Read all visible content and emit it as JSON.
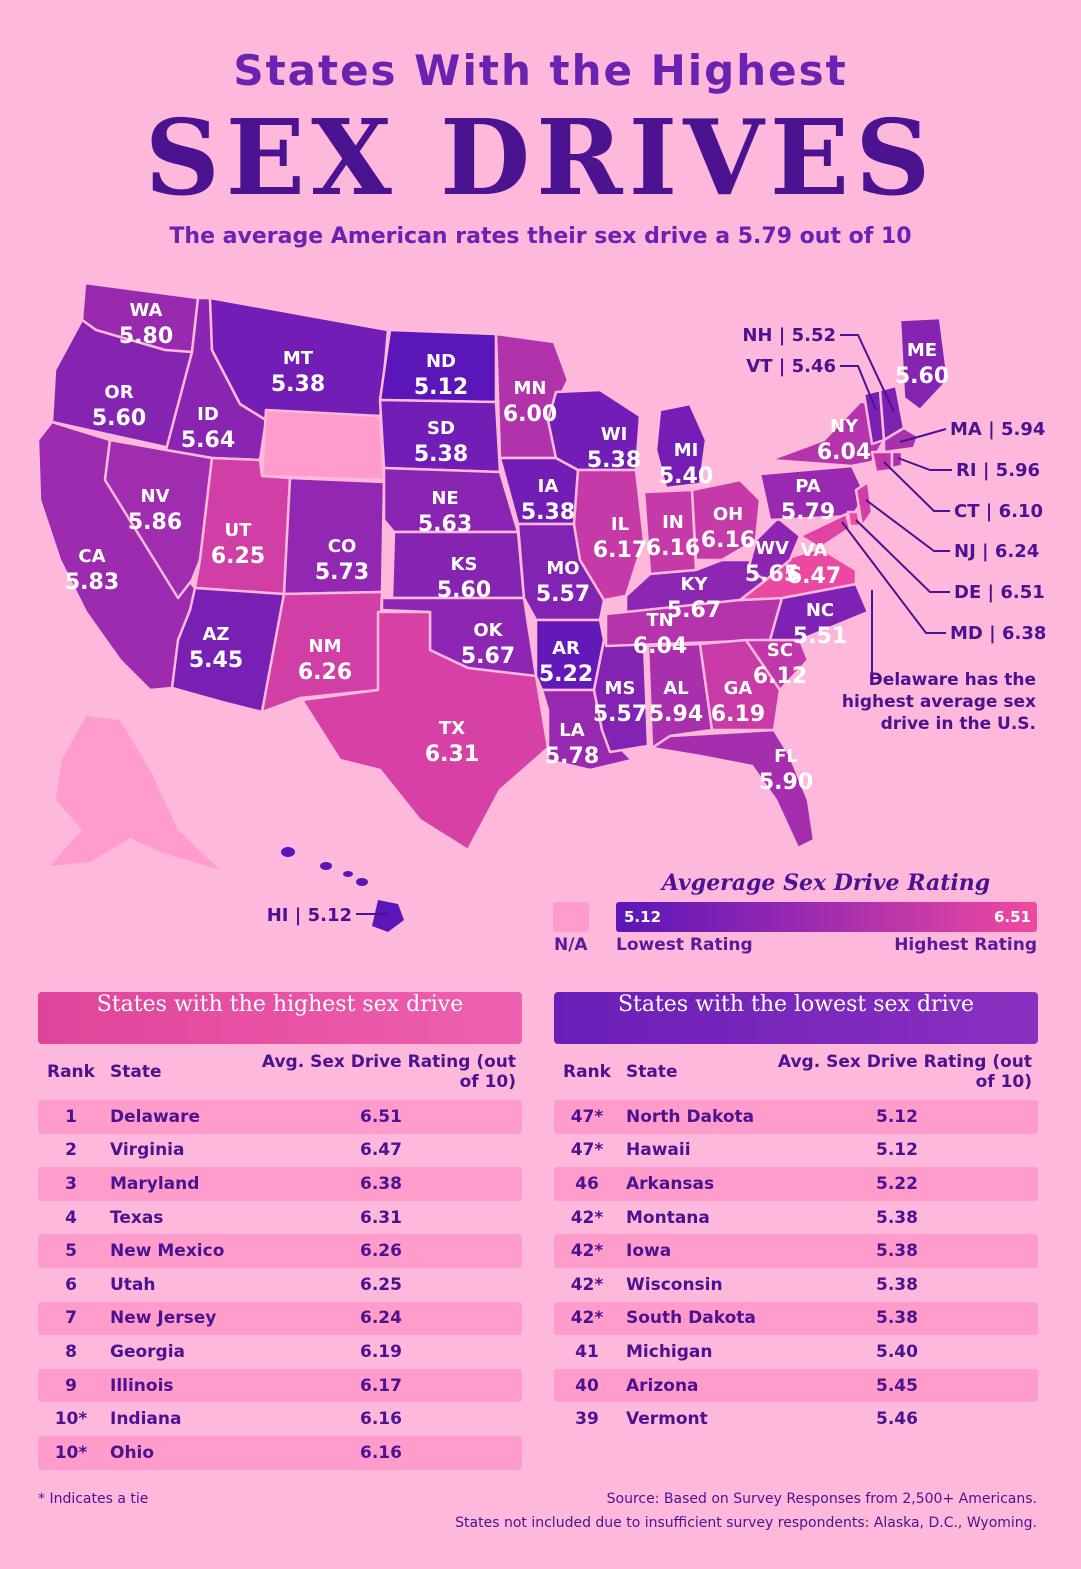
{
  "header": {
    "title_top": "States With the Highest",
    "title_big": "SEX DRIVES",
    "subtitle": "The average American rates their sex drive a 5.79 out of 10"
  },
  "colors": {
    "background": "#fdb8dc",
    "low": "#5a16b8",
    "high": "#f04aa0",
    "na": "#ff9ccc",
    "text": "#4c1390"
  },
  "map": {
    "states": [
      {
        "abbr": "WA",
        "value": "5.80"
      },
      {
        "abbr": "OR",
        "value": "5.60"
      },
      {
        "abbr": "CA",
        "value": "5.83"
      },
      {
        "abbr": "ID",
        "value": "5.64"
      },
      {
        "abbr": "NV",
        "value": "5.86"
      },
      {
        "abbr": "MT",
        "value": "5.38"
      },
      {
        "abbr": "UT",
        "value": "6.25"
      },
      {
        "abbr": "AZ",
        "value": "5.45"
      },
      {
        "abbr": "CO",
        "value": "5.73"
      },
      {
        "abbr": "NM",
        "value": "6.26"
      },
      {
        "abbr": "ND",
        "value": "5.12"
      },
      {
        "abbr": "SD",
        "value": "5.38"
      },
      {
        "abbr": "NE",
        "value": "5.63"
      },
      {
        "abbr": "KS",
        "value": "5.60"
      },
      {
        "abbr": "OK",
        "value": "5.67"
      },
      {
        "abbr": "TX",
        "value": "6.31"
      },
      {
        "abbr": "MN",
        "value": "6.00"
      },
      {
        "abbr": "IA",
        "value": "5.38"
      },
      {
        "abbr": "MO",
        "value": "5.57"
      },
      {
        "abbr": "AR",
        "value": "5.22"
      },
      {
        "abbr": "LA",
        "value": "5.78"
      },
      {
        "abbr": "WI",
        "value": "5.38"
      },
      {
        "abbr": "IL",
        "value": "6.17"
      },
      {
        "abbr": "MS",
        "value": "5.57"
      },
      {
        "abbr": "MI",
        "value": "5.40"
      },
      {
        "abbr": "IN",
        "value": "6.16"
      },
      {
        "abbr": "OH",
        "value": "6.16"
      },
      {
        "abbr": "KY",
        "value": "5.67"
      },
      {
        "abbr": "TN",
        "value": "6.04"
      },
      {
        "abbr": "AL",
        "value": "5.94"
      },
      {
        "abbr": "GA",
        "value": "6.19"
      },
      {
        "abbr": "FL",
        "value": "5.90"
      },
      {
        "abbr": "SC",
        "value": "6.12"
      },
      {
        "abbr": "NC",
        "value": "5.51"
      },
      {
        "abbr": "VA",
        "value": "6.47"
      },
      {
        "abbr": "WV",
        "value": "5.65"
      },
      {
        "abbr": "PA",
        "value": "5.79"
      },
      {
        "abbr": "NY",
        "value": "6.04"
      },
      {
        "abbr": "ME",
        "value": "5.60"
      }
    ],
    "callouts": {
      "nh": "NH | 5.52",
      "vt": "VT | 5.46",
      "ma": "MA | 5.94",
      "ri": "RI | 5.96",
      "ct": "CT | 6.10",
      "nj": "NJ | 6.24",
      "de": "DE | 6.51",
      "md": "MD | 6.38",
      "hi": "HI | 5.12"
    },
    "note": [
      "Delaware has the",
      "highest average sex",
      "drive in the U.S."
    ]
  },
  "legend": {
    "title": "Avgerage Sex Drive Rating",
    "na_label": "N/A",
    "min": "5.12",
    "max": "6.51",
    "low_label": "Lowest Rating",
    "high_label": "Highest Rating"
  },
  "tables": {
    "col_rank": "Rank",
    "col_state": "State",
    "col_value": "Avg. Sex Drive Rating (out of 10)",
    "highest": {
      "title": "States with the highest sex drive",
      "rows": [
        {
          "rank": "1",
          "state": "Delaware",
          "value": "6.51"
        },
        {
          "rank": "2",
          "state": "Virginia",
          "value": "6.47"
        },
        {
          "rank": "3",
          "state": "Maryland",
          "value": "6.38"
        },
        {
          "rank": "4",
          "state": "Texas",
          "value": "6.31"
        },
        {
          "rank": "5",
          "state": "New Mexico",
          "value": "6.26"
        },
        {
          "rank": "6",
          "state": "Utah",
          "value": "6.25"
        },
        {
          "rank": "7",
          "state": "New Jersey",
          "value": "6.24"
        },
        {
          "rank": "8",
          "state": "Georgia",
          "value": "6.19"
        },
        {
          "rank": "9",
          "state": "Illinois",
          "value": "6.17"
        },
        {
          "rank": "10*",
          "state": "Indiana",
          "value": "6.16"
        },
        {
          "rank": "10*",
          "state": "Ohio",
          "value": "6.16"
        }
      ]
    },
    "lowest": {
      "title": "States with the lowest sex drive",
      "rows": [
        {
          "rank": "47*",
          "state": "North Dakota",
          "value": "5.12"
        },
        {
          "rank": "47*",
          "state": "Hawaii",
          "value": "5.12"
        },
        {
          "rank": "46",
          "state": "Arkansas",
          "value": "5.22"
        },
        {
          "rank": "42*",
          "state": "Montana",
          "value": "5.38"
        },
        {
          "rank": "42*",
          "state": "Iowa",
          "value": "5.38"
        },
        {
          "rank": "42*",
          "state": "Wisconsin",
          "value": "5.38"
        },
        {
          "rank": "42*",
          "state": "South Dakota",
          "value": "5.38"
        },
        {
          "rank": "41",
          "state": "Michigan",
          "value": "5.40"
        },
        {
          "rank": "40",
          "state": "Arizona",
          "value": "5.45"
        },
        {
          "rank": "39",
          "state": "Vermont",
          "value": "5.46"
        }
      ]
    }
  },
  "footer": {
    "tie_note": "* Indicates a tie",
    "source": "Source: Based on Survey Responses from 2,500+ Americans.",
    "excluded": "States not included due to insufficient survey respondents: Alaska, D.C., Wyoming."
  }
}
